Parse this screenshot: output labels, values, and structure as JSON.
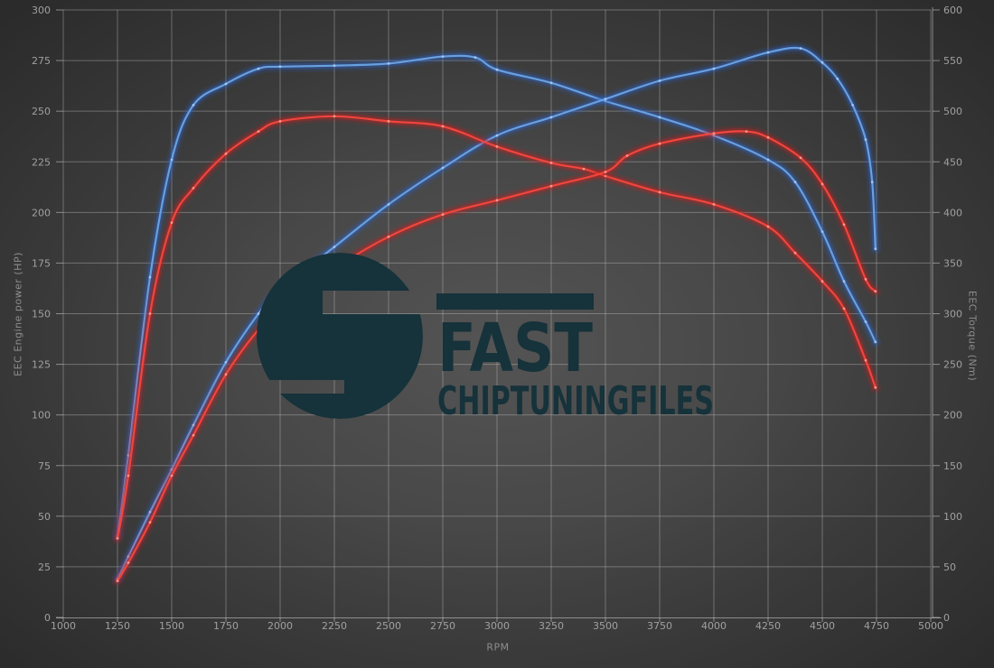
{
  "chart_data": {
    "type": "line",
    "title": "",
    "xlabel": "RPM",
    "ylabel_left": "EEC Engine power (HP)",
    "ylabel_right": "EEC Torque (Nm)",
    "x_range": [
      1000,
      5000
    ],
    "y_left_range": [
      0,
      300
    ],
    "y_right_range": [
      0,
      600
    ],
    "grid": true,
    "legend_position": "none",
    "x_ticks": [
      1000,
      1250,
      1500,
      1750,
      2000,
      2250,
      2500,
      2750,
      3000,
      3250,
      3500,
      3750,
      4000,
      4250,
      4500,
      4750,
      5000
    ],
    "y_left_ticks": [
      0,
      25,
      50,
      75,
      100,
      125,
      150,
      175,
      200,
      225,
      250,
      275,
      300
    ],
    "y_right_ticks": [
      0,
      50,
      100,
      150,
      200,
      250,
      300,
      350,
      400,
      450,
      500,
      550,
      600
    ],
    "series": [
      {
        "name": "torque-blue",
        "axis": "right",
        "unit": "Nm",
        "color": "#68a0e0",
        "glow": "#2e62c8",
        "dot": "#a9c9f2",
        "points": [
          [
            1250,
            80
          ],
          [
            1300,
            160
          ],
          [
            1400,
            336
          ],
          [
            1500,
            452
          ],
          [
            1600,
            506
          ],
          [
            1750,
            527
          ],
          [
            1900,
            542
          ],
          [
            2000,
            544
          ],
          [
            2250,
            545
          ],
          [
            2500,
            547
          ],
          [
            2750,
            554
          ],
          [
            2900,
            553
          ],
          [
            3000,
            541
          ],
          [
            3250,
            528
          ],
          [
            3500,
            510
          ],
          [
            3750,
            494
          ],
          [
            4000,
            476
          ],
          [
            4250,
            452
          ],
          [
            4375,
            430
          ],
          [
            4500,
            381
          ],
          [
            4600,
            332
          ],
          [
            4700,
            292
          ],
          [
            4745,
            272
          ]
        ]
      },
      {
        "name": "power-blue",
        "axis": "left",
        "unit": "HP",
        "color": "#68a0e0",
        "glow": "#2e62c8",
        "dot": "#a9c9f2",
        "points": [
          [
            1250,
            19
          ],
          [
            1300,
            30
          ],
          [
            1400,
            52
          ],
          [
            1500,
            73
          ],
          [
            1600,
            95
          ],
          [
            1750,
            126
          ],
          [
            1900,
            150
          ],
          [
            2000,
            162
          ],
          [
            2250,
            183
          ],
          [
            2500,
            204
          ],
          [
            2750,
            222
          ],
          [
            3000,
            238
          ],
          [
            3250,
            247
          ],
          [
            3500,
            256
          ],
          [
            3750,
            265
          ],
          [
            4000,
            271
          ],
          [
            4250,
            279
          ],
          [
            4400,
            281
          ],
          [
            4500,
            274
          ],
          [
            4570,
            266
          ],
          [
            4640,
            253
          ],
          [
            4700,
            236
          ],
          [
            4730,
            215
          ],
          [
            4745,
            182
          ]
        ]
      },
      {
        "name": "torque-red",
        "axis": "right",
        "unit": "Nm",
        "color": "#ef463e",
        "glow": "#cc1f1f",
        "dot": "#ff9d94",
        "points": [
          [
            1250,
            78
          ],
          [
            1300,
            140
          ],
          [
            1400,
            300
          ],
          [
            1500,
            390
          ],
          [
            1600,
            424
          ],
          [
            1750,
            458
          ],
          [
            1900,
            480
          ],
          [
            2000,
            490
          ],
          [
            2250,
            495
          ],
          [
            2500,
            490
          ],
          [
            2750,
            485
          ],
          [
            3000,
            465
          ],
          [
            3250,
            449
          ],
          [
            3400,
            443
          ],
          [
            3500,
            436
          ],
          [
            3750,
            420
          ],
          [
            4000,
            408
          ],
          [
            4250,
            386
          ],
          [
            4375,
            360
          ],
          [
            4500,
            332
          ],
          [
            4600,
            305
          ],
          [
            4700,
            254
          ],
          [
            4745,
            227
          ]
        ]
      },
      {
        "name": "power-red",
        "axis": "left",
        "unit": "HP",
        "color": "#ef463e",
        "glow": "#cc1f1f",
        "dot": "#ff9d94",
        "points": [
          [
            1250,
            18
          ],
          [
            1300,
            27
          ],
          [
            1400,
            47
          ],
          [
            1500,
            70
          ],
          [
            1600,
            90
          ],
          [
            1750,
            120
          ],
          [
            1900,
            142
          ],
          [
            2000,
            151
          ],
          [
            2250,
            172
          ],
          [
            2500,
            188
          ],
          [
            2750,
            199
          ],
          [
            3000,
            206
          ],
          [
            3250,
            213
          ],
          [
            3500,
            220
          ],
          [
            3600,
            228
          ],
          [
            3750,
            234
          ],
          [
            4000,
            239
          ],
          [
            4150,
            240
          ],
          [
            4250,
            237
          ],
          [
            4400,
            227
          ],
          [
            4500,
            214
          ],
          [
            4600,
            194
          ],
          [
            4700,
            167
          ],
          [
            4745,
            161
          ]
        ]
      }
    ]
  },
  "watermark": {
    "title": "FAST",
    "subtitle": "CHIPTUNINGFILES",
    "color": "#16323a"
  },
  "colors": {
    "grid": "rgba(195,195,195,0.40)",
    "axis": "rgba(210,210,210,0.55)",
    "tick_label": "#a0a0a0",
    "axis_title": "#8d8d8d"
  }
}
